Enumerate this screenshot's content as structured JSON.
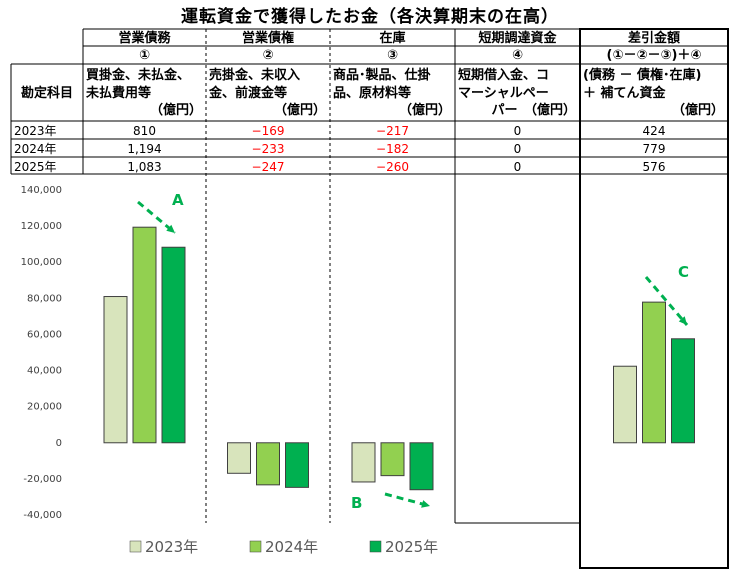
{
  "title": "運転資金で獲得したお金（各決算期末の在高）",
  "table": {
    "row_header_label": "勘定科目",
    "columns": [
      {
        "name": "営業債務",
        "num": "①",
        "desc": [
          "買掛金、未払金、",
          "未払費用等"
        ],
        "unit": "（億円）"
      },
      {
        "name": "営業債権",
        "num": "②",
        "desc": [
          "売掛金、未収入",
          "金、前渡金等"
        ],
        "unit": "（億円）"
      },
      {
        "name": "在庫",
        "num": "③",
        "desc": [
          "商品･製品、仕掛",
          "品、原材料等"
        ],
        "unit": "（億円）"
      },
      {
        "name": "短期調達資金",
        "num": "④",
        "desc": [
          "短期借入金、コ",
          "マーシャルペー"
        ],
        "unit": "パー　（億円）"
      },
      {
        "name": "差引金額",
        "num": "(①－②－③)＋④",
        "desc": [
          "(債務 － 債権･在庫)",
          "＋ 補てん資金"
        ],
        "unit": "（億円）"
      }
    ],
    "rows": [
      {
        "year": "2023年",
        "values": [
          "810",
          "−169",
          "−217",
          "0",
          "424"
        ]
      },
      {
        "year": "2024年",
        "values": [
          "1,194",
          "−233",
          "−182",
          "0",
          "779"
        ]
      },
      {
        "year": "2025年",
        "values": [
          "1,083",
          "−247",
          "−260",
          "0",
          "576"
        ]
      }
    ]
  },
  "colors": {
    "y2023": "#d8e4bc",
    "y2024": "#92d050",
    "y2025": "#00b050",
    "negative": "#ff0000",
    "annotation": "#00b050"
  },
  "chart_data": {
    "type": "bar",
    "categories": [
      "営業債務",
      "営業債権",
      "在庫",
      "短期調達資金",
      "差引金額"
    ],
    "series": [
      {
        "name": "2023年",
        "values": [
          81000,
          -16900,
          -21700,
          0,
          42400
        ]
      },
      {
        "name": "2024年",
        "values": [
          119400,
          -23300,
          -18200,
          0,
          77900
        ]
      },
      {
        "name": "2025年",
        "values": [
          108300,
          -24700,
          -26000,
          0,
          57600
        ]
      }
    ],
    "ylim": [
      -40000,
      140000
    ],
    "yticks": [
      "140,000",
      "120,000",
      "100,000",
      "80,000",
      "60,000",
      "40,000",
      "20,000",
      "0",
      "-20,000",
      "-40,000"
    ],
    "legend_position": "bottom",
    "grid": false,
    "annotations": [
      "A",
      "B",
      "C"
    ]
  }
}
